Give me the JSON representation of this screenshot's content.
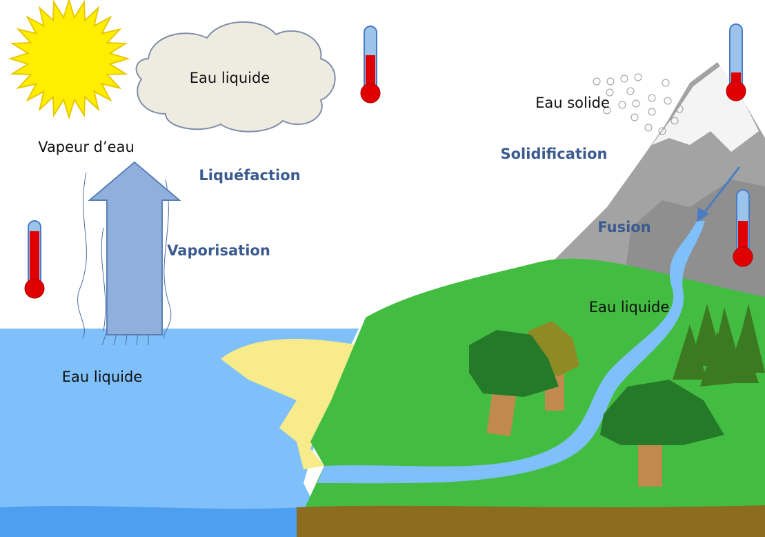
{
  "states": [
    "Eau liquide",
    "Vapeur d’eau",
    "Eau liquide",
    "Eau solide",
    "Eau liquide"
  ],
  "processes": [
    "Liquéfaction",
    "Vaporisation",
    "Solidification",
    "Fusion"
  ]
}
